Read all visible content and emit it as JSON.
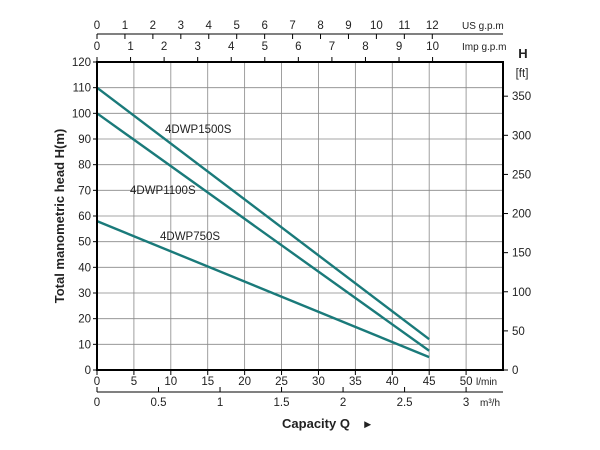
{
  "chart_data": {
    "type": "line",
    "xlabel": "Capacity Q",
    "xlabel_arrow": "►",
    "ylabel": "Total manometric head H(m)",
    "right_axis_title": "H",
    "right_axis_unit": "[ft]",
    "xlim": [
      0,
      55
    ],
    "ylim": [
      0,
      120
    ],
    "grid": true,
    "x_ticks": [
      "0",
      "5",
      "10",
      "15",
      "20",
      "25",
      "30",
      "35",
      "40",
      "45",
      "50"
    ],
    "x_unit": "l/min",
    "y_ticks": [
      "0",
      "10",
      "20",
      "30",
      "40",
      "50",
      "60",
      "70",
      "80",
      "90",
      "100",
      "110",
      "120"
    ],
    "m3h_axis": {
      "ticks": [
        {
          "label": "0",
          "value": 0
        },
        {
          "label": "0.5",
          "value": 0.5
        },
        {
          "label": "1",
          "value": 1
        },
        {
          "label": "1.5",
          "value": 1.5
        },
        {
          "label": "2",
          "value": 2
        },
        {
          "label": "2.5",
          "value": 2.5
        },
        {
          "label": "3",
          "value": 3
        }
      ],
      "unit": "m³/h"
    },
    "us_gpm_axis": {
      "ticks": [
        {
          "label": "0",
          "value": 0
        },
        {
          "label": "1",
          "value": 1
        },
        {
          "label": "2",
          "value": 2
        },
        {
          "label": "3",
          "value": 3
        },
        {
          "label": "4",
          "value": 4
        },
        {
          "label": "5",
          "value": 5
        },
        {
          "label": "6",
          "value": 6
        },
        {
          "label": "7",
          "value": 7
        },
        {
          "label": "8",
          "value": 8
        },
        {
          "label": "9",
          "value": 9
        },
        {
          "label": "10",
          "value": 10
        },
        {
          "label": "11",
          "value": 11
        },
        {
          "label": "12",
          "value": 12
        }
      ],
      "unit": "US g.p.m"
    },
    "imp_gpm_axis": {
      "ticks": [
        {
          "label": "0",
          "value": 0
        },
        {
          "label": "1",
          "value": 1
        },
        {
          "label": "2",
          "value": 2
        },
        {
          "label": "3",
          "value": 3
        },
        {
          "label": "4",
          "value": 4
        },
        {
          "label": "5",
          "value": 5
        },
        {
          "label": "6",
          "value": 6
        },
        {
          "label": "7",
          "value": 7
        },
        {
          "label": "8",
          "value": 8
        },
        {
          "label": "9",
          "value": 9
        },
        {
          "label": "10",
          "value": 10
        }
      ],
      "unit": "Imp g.p.m"
    },
    "ft_axis": {
      "ticks": [
        {
          "label": "0",
          "value": 0
        },
        {
          "label": "50",
          "value": 50
        },
        {
          "label": "100",
          "value": 100
        },
        {
          "label": "150",
          "value": 150
        },
        {
          "label": "200",
          "value": 200
        },
        {
          "label": "250",
          "value": 250
        },
        {
          "label": "300",
          "value": 300
        },
        {
          "label": "350",
          "value": 350
        }
      ]
    },
    "series": [
      {
        "name": "4DWP1500S",
        "x": [
          0,
          45
        ],
        "y": [
          110,
          12
        ],
        "color": "#1a7a7a"
      },
      {
        "name": "4DWP1100S",
        "x": [
          0,
          45
        ],
        "y": [
          100,
          7.5
        ],
        "color": "#1a7a7a"
      },
      {
        "name": "4DWP750S",
        "x": [
          0,
          45
        ],
        "y": [
          58,
          5
        ],
        "color": "#1a7a7a"
      }
    ],
    "colors": {
      "curve": "#1a7a7a",
      "grid": "#888888",
      "axis": "#000000"
    }
  }
}
